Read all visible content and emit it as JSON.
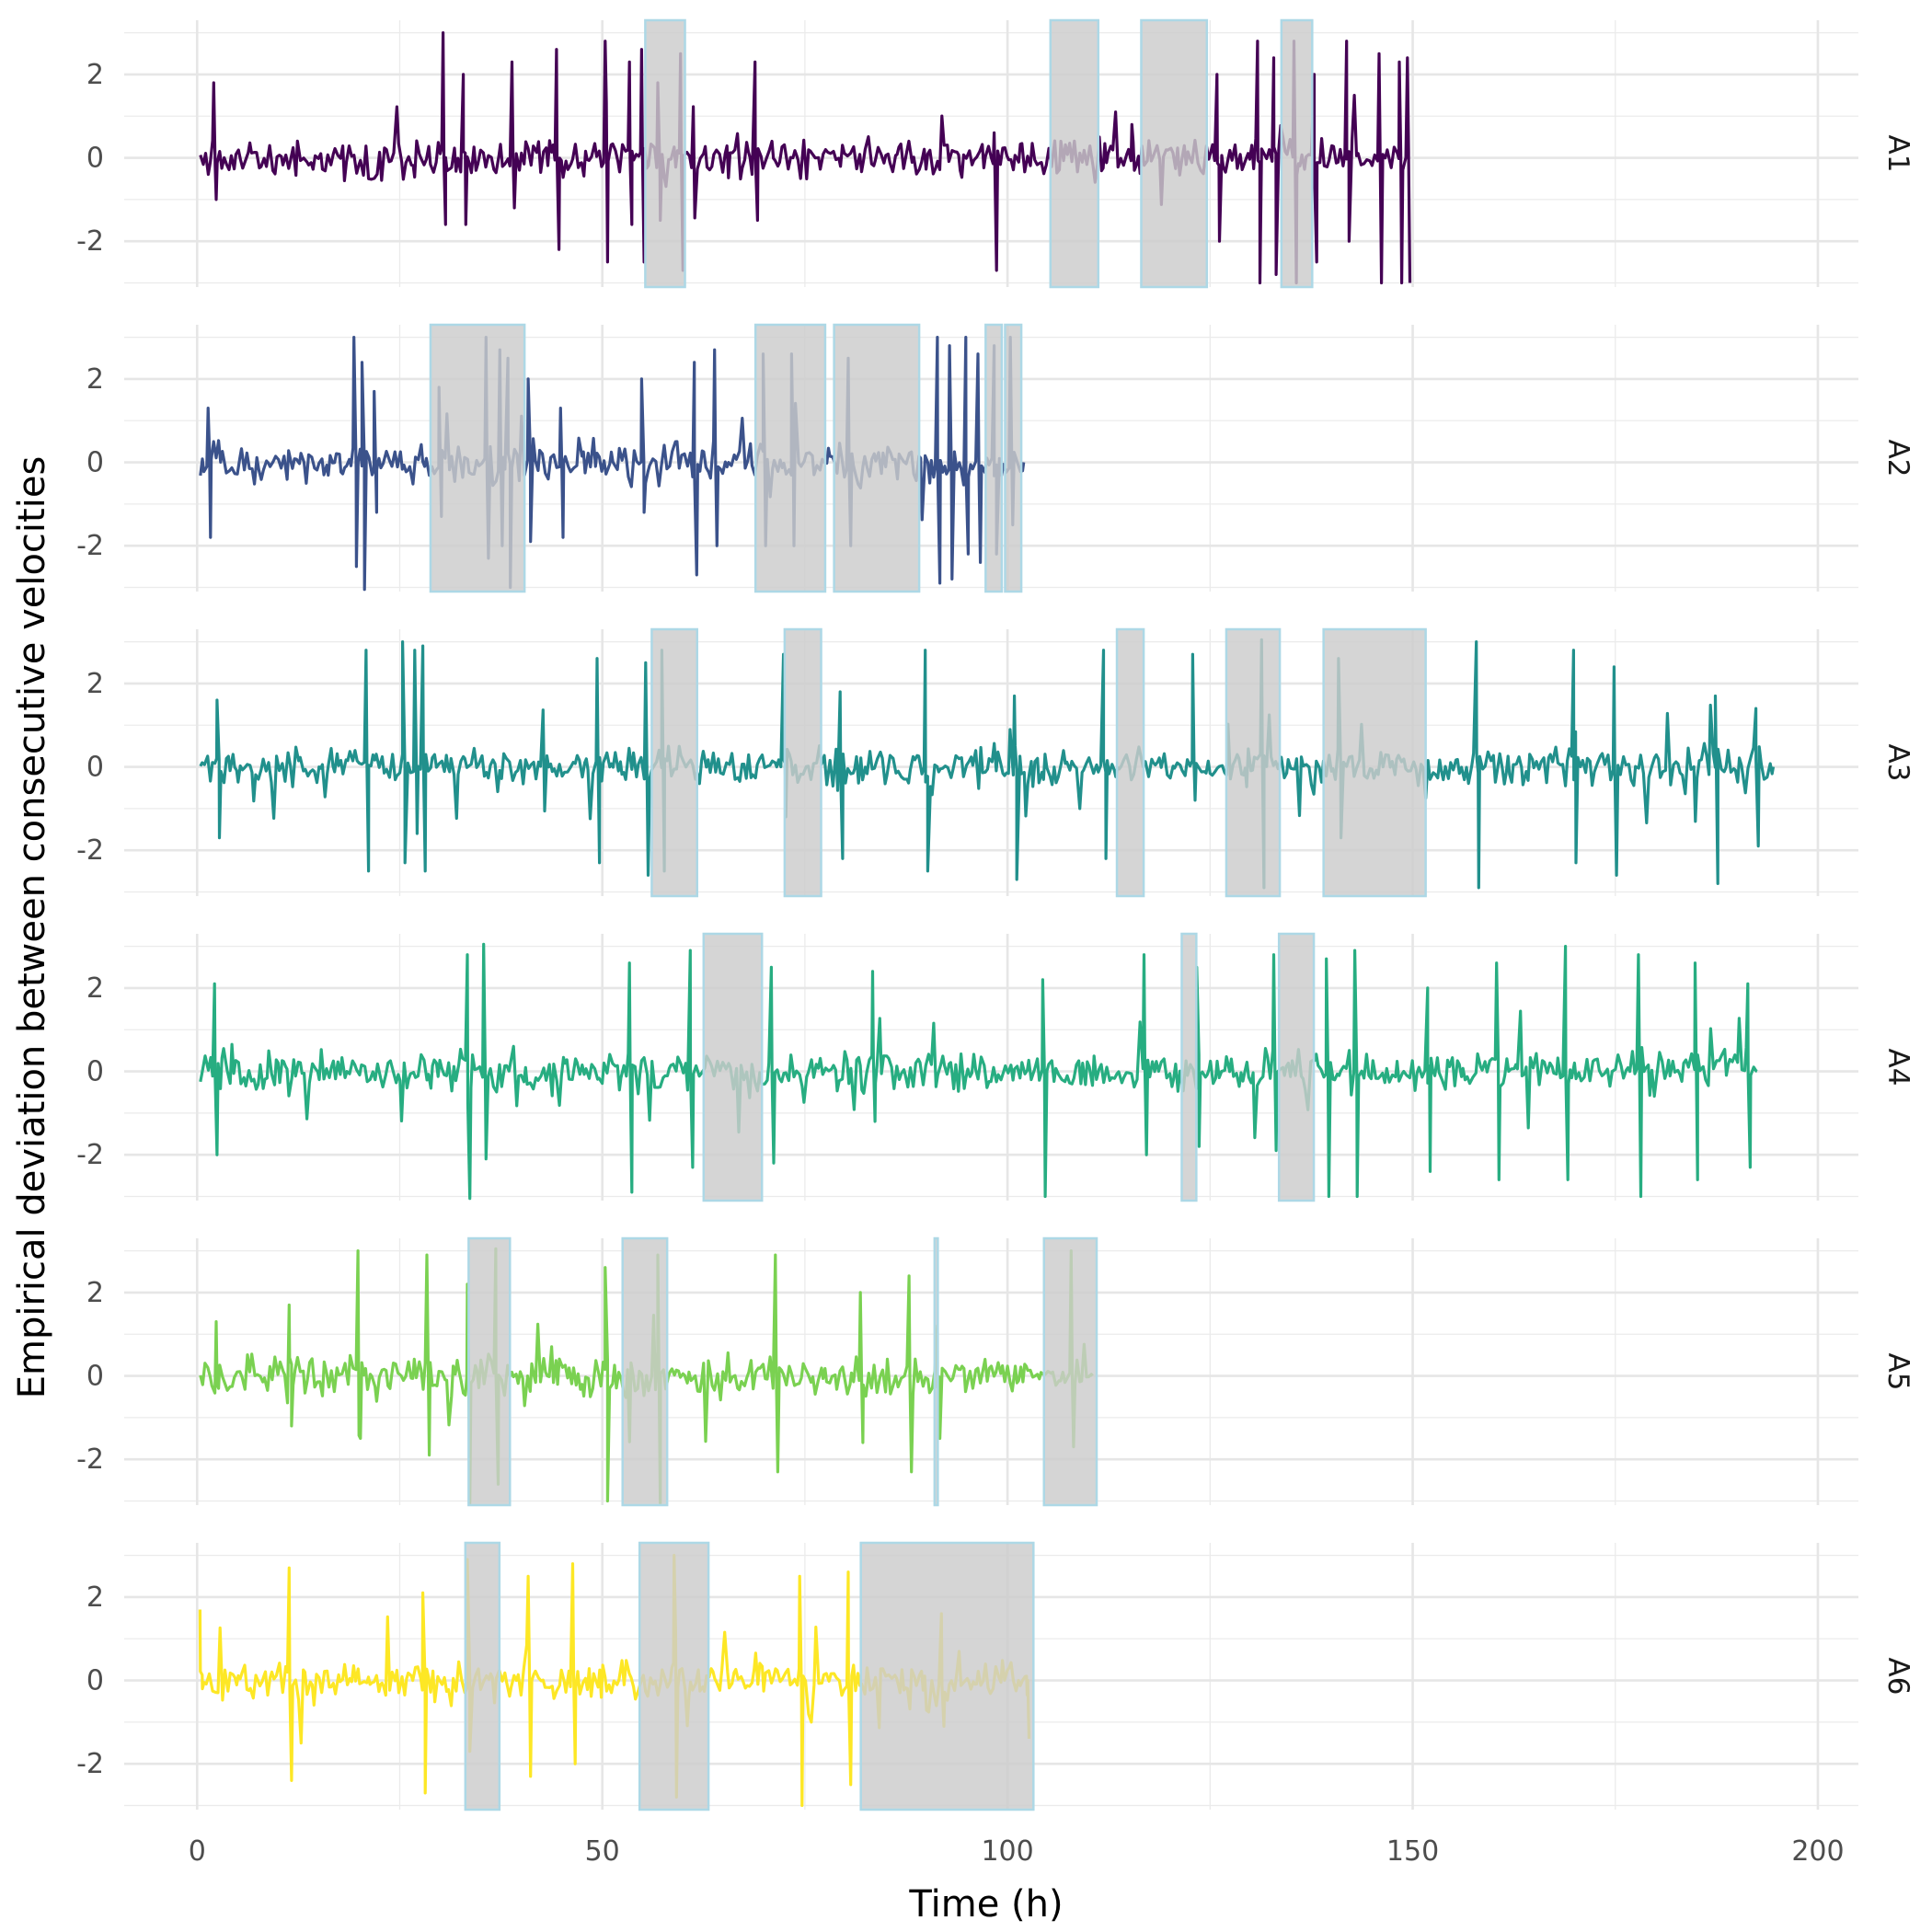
{
  "chart_data": {
    "type": "line",
    "layout": "faceted-rows",
    "xlabel": "Time (h)",
    "ylabel": "Empirical deviation between consecutive velocities",
    "xlim": [
      -9,
      205
    ],
    "ylim": [
      -3.1,
      3.3
    ],
    "xticks": [
      0,
      50,
      100,
      150,
      200
    ],
    "xtick_labels": [
      "0",
      "50",
      "100",
      "150",
      "200"
    ],
    "yticks": [
      -2,
      0,
      2
    ],
    "ytick_labels": [
      "-2",
      "0",
      "2"
    ],
    "grid": true,
    "legend": "none",
    "shading": {
      "fill": "#cccccc",
      "border": "#add8e6"
    },
    "panels": [
      {
        "label": "A1",
        "color": "#440154",
        "t_end": 149.5,
        "seed": 11,
        "excursions": [
          [
            2.2,
            1.8,
            -1.0
          ],
          [
            30.5,
            3.0,
            -1.6
          ],
          [
            33,
            2.0,
            -1.6
          ],
          [
            39,
            2.3,
            -1.2
          ],
          [
            44.5,
            2.6,
            -2.2
          ],
          [
            50.5,
            2.8,
            -2.5
          ],
          [
            53.5,
            2.3,
            -1.6
          ],
          [
            55,
            2.6,
            -2.5
          ],
          [
            57,
            1.8,
            -1.5
          ],
          [
            59.8,
            2.5,
            -2.7
          ],
          [
            69,
            2.3,
            -1.5
          ],
          [
            98.5,
            0.6,
            -2.7
          ],
          [
            115.5,
            0.8,
            -0.3
          ],
          [
            126,
            2.0,
            -2.0
          ],
          [
            131,
            2.8,
            -3.0
          ],
          [
            133,
            2.4,
            -2.8
          ],
          [
            135.5,
            2.8,
            -3.0
          ],
          [
            138,
            2.0,
            -2.5
          ],
          [
            142,
            2.8,
            -2.0
          ],
          [
            146,
            2.5,
            -3.0
          ],
          [
            148.5,
            2.3,
            -3.0
          ],
          [
            149.5,
            2.4,
            -3.0
          ]
        ],
        "shaded": [
          [
            55.3,
            60.2
          ],
          [
            105.3,
            111.2
          ],
          [
            116.5,
            124.6
          ],
          [
            133.8,
            137.6
          ]
        ]
      },
      {
        "label": "A2",
        "color": "#3b528b",
        "t_end": 102,
        "seed": 23,
        "excursions": [
          [
            1.5,
            1.3,
            -1.8
          ],
          [
            19.5,
            3.0,
            -2.5
          ],
          [
            20.5,
            2.4,
            -3.1
          ],
          [
            22,
            1.7,
            -1.2
          ],
          [
            30,
            1.8,
            -1.3
          ],
          [
            35.8,
            3.0,
            -2.3
          ],
          [
            37.5,
            2.7,
            -2.0
          ],
          [
            38.5,
            2.5,
            -3.0
          ],
          [
            41,
            2.0,
            -1.9
          ],
          [
            45,
            1.3,
            -1.8
          ],
          [
            55,
            2.0,
            -1.2
          ],
          [
            61.5,
            2.4,
            -2.7
          ],
          [
            64,
            2.7,
            -2.0
          ],
          [
            70,
            2.6,
            -2.0
          ],
          [
            73.5,
            2.6,
            -2.0
          ],
          [
            80.5,
            2.5,
            -2.0
          ],
          [
            91.5,
            3.0,
            -2.9
          ],
          [
            93,
            2.8,
            -2.8
          ],
          [
            95,
            3.0,
            -2.2
          ],
          [
            96.5,
            2.6,
            -2.4
          ],
          [
            98.5,
            2.8,
            -2.2
          ],
          [
            100.5,
            3.0,
            -1.5
          ]
        ],
        "shaded": [
          [
            28.8,
            40.4
          ],
          [
            68.9,
            77.5
          ],
          [
            78.6,
            89.1
          ],
          [
            97.3,
            99.3
          ],
          [
            99.7,
            101.7
          ]
        ]
      },
      {
        "label": "A3",
        "color": "#21908c",
        "t_end": 194.5,
        "seed": 37,
        "excursions": [
          [
            2.6,
            1.6,
            -1.7
          ],
          [
            21,
            2.8,
            -2.5
          ],
          [
            25.5,
            3.0,
            -2.3
          ],
          [
            27,
            2.8,
            -1.6
          ],
          [
            28,
            2.9,
            -2.5
          ],
          [
            49.5,
            2.6,
            -2.3
          ],
          [
            55.5,
            2.5,
            -2.6
          ],
          [
            57.5,
            2.8,
            -2.5
          ],
          [
            72.5,
            2.7,
            -1.2
          ],
          [
            79.5,
            1.8,
            -2.2
          ],
          [
            90,
            2.8,
            -2.5
          ],
          [
            101,
            1.7,
            -2.7
          ],
          [
            112,
            2.8,
            -2.2
          ],
          [
            123,
            2.7,
            -0.8
          ],
          [
            131.5,
            3.1,
            -2.9
          ],
          [
            141,
            2.6,
            -1.7
          ],
          [
            158,
            3.0,
            -2.9
          ],
          [
            170,
            2.8,
            -2.3
          ],
          [
            175,
            2.4,
            -2.6
          ],
          [
            187.5,
            1.7,
            -2.8
          ],
          [
            192.5,
            1.4,
            -1.9
          ]
        ],
        "shaded": [
          [
            56.1,
            61.7
          ],
          [
            72.5,
            77.0
          ],
          [
            113.5,
            116.8
          ],
          [
            127.0,
            133.6
          ],
          [
            139.0,
            151.6
          ]
        ]
      },
      {
        "label": "A4",
        "color": "#27ad81",
        "t_end": 192.5,
        "seed": 53,
        "excursions": [
          [
            2.3,
            2.1,
            -2.0
          ],
          [
            33.5,
            2.8,
            -3.1
          ],
          [
            35.5,
            3.1,
            -2.1
          ],
          [
            53.5,
            2.6,
            -2.9
          ],
          [
            61,
            2.9,
            -2.3
          ],
          [
            71,
            2.5,
            -2.2
          ],
          [
            83.5,
            2.4,
            -1.2
          ],
          [
            104.5,
            2.2,
            -3.0
          ],
          [
            117,
            2.8,
            -2.0
          ],
          [
            123.5,
            2.5,
            -1.8
          ],
          [
            133,
            2.8,
            -1.9
          ],
          [
            139.5,
            2.7,
            -3.0
          ],
          [
            143,
            2.9,
            -3.0
          ],
          [
            152,
            2.0,
            -2.4
          ],
          [
            160.5,
            2.6,
            -2.6
          ],
          [
            169,
            3.0,
            -2.6
          ],
          [
            178,
            2.8,
            -3.0
          ],
          [
            185,
            2.6,
            -2.6
          ],
          [
            191.5,
            2.1,
            -2.3
          ]
        ],
        "shaded": [
          [
            62.5,
            69.7
          ],
          [
            121.5,
            123.3
          ],
          [
            133.5,
            137.8
          ]
        ]
      },
      {
        "label": "A5",
        "color": "#7ad151",
        "t_end": 110.5,
        "seed": 71,
        "excursions": [
          [
            2.5,
            1.3,
            -0.3
          ],
          [
            11.5,
            1.7,
            -1.2
          ],
          [
            20,
            3.0,
            -1.5
          ],
          [
            28.5,
            2.9,
            -1.9
          ],
          [
            33.5,
            2.2,
            -3.1
          ],
          [
            37,
            3.1,
            -2.6
          ],
          [
            50.5,
            2.6,
            -3.0
          ],
          [
            57,
            2.9,
            -3.1
          ],
          [
            71.5,
            2.9,
            -2.3
          ],
          [
            82,
            2.0,
            -1.6
          ],
          [
            88,
            2.4,
            -2.3
          ],
          [
            91.5,
            1.2,
            -1.5
          ],
          [
            108,
            3.0,
            -1.7
          ]
        ],
        "shaded": [
          [
            33.5,
            38.6
          ],
          [
            52.5,
            58.0
          ],
          [
            91.0,
            91.4
          ],
          [
            104.5,
            111.0
          ]
        ]
      },
      {
        "label": "A6",
        "color": "#fde725",
        "t_end": 102.5,
        "seed": 89,
        "excursions": [
          [
            0.5,
            1.7,
            -0.2
          ],
          [
            11.5,
            2.7,
            -2.4
          ],
          [
            28,
            2.1,
            -2.7
          ],
          [
            33.5,
            2.9,
            -1.7
          ],
          [
            41,
            2.5,
            -2.3
          ],
          [
            46.5,
            2.8,
            -2.0
          ],
          [
            59,
            3.0,
            -2.8
          ],
          [
            74.5,
            2.5,
            -3.0
          ],
          [
            80.5,
            2.6,
            -2.5
          ],
          [
            92,
            1.6,
            -1.1
          ],
          [
            102.5,
            0.1,
            -1.4
          ]
        ],
        "shaded": [
          [
            33.1,
            37.3
          ],
          [
            54.6,
            63.1
          ],
          [
            81.9,
            103.2
          ]
        ]
      }
    ]
  }
}
